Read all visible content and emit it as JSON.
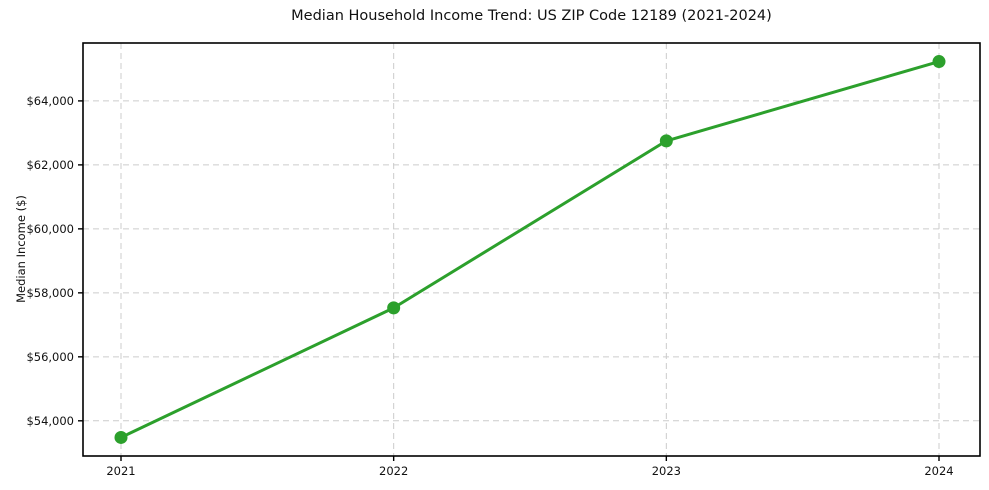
{
  "page": {
    "background": "#ffffff"
  },
  "chart_data": {
    "type": "line",
    "title": "Median Household Income Trend: US ZIP Code 12189 (2021-2024)",
    "xlabel": "",
    "ylabel": "Median Income ($)",
    "x": [
      "2021",
      "2022",
      "2023",
      "2024"
    ],
    "series": [
      {
        "name": "Median Household Income",
        "values": [
          53480,
          57530,
          62750,
          65230
        ],
        "color": "#2ca02c",
        "marker": "circle",
        "line_width": 3,
        "marker_radius": 6.5
      }
    ],
    "yticks": [
      54000,
      56000,
      58000,
      60000,
      62000,
      64000
    ],
    "ytick_labels": [
      "$54,000",
      "$56,000",
      "$58,000",
      "$60,000",
      "$62,000",
      "$64,000"
    ],
    "ylim": [
      52900,
      65810
    ],
    "grid": {
      "show": true,
      "style": "dashed",
      "color": "#cccccc"
    },
    "legend": {
      "show": false
    },
    "axis_color": "#000000"
  }
}
